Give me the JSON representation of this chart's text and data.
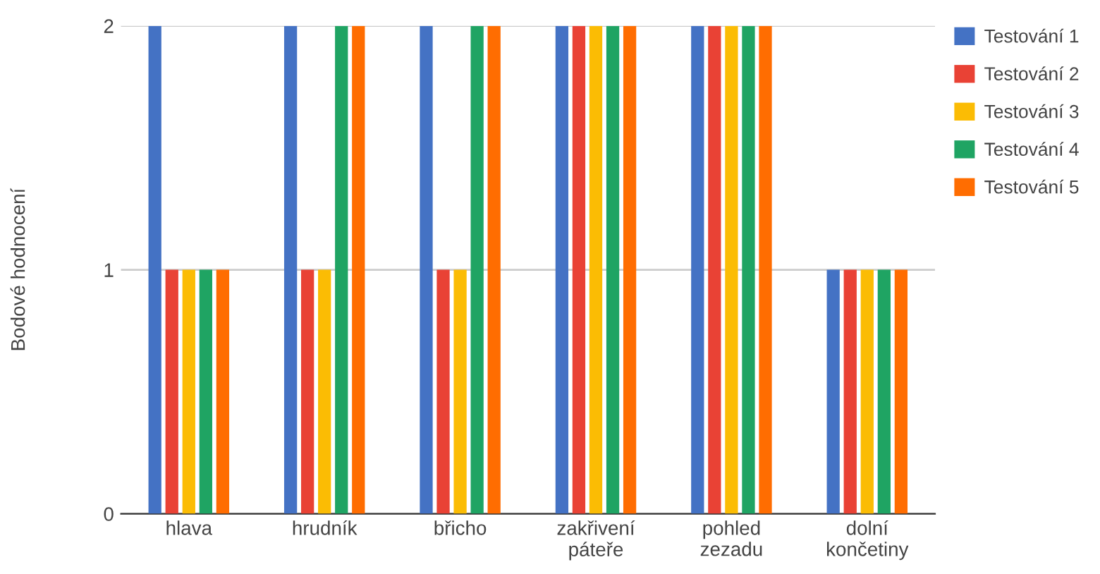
{
  "chart_data": {
    "type": "bar",
    "ylabel": "Bodové hodnocení",
    "categories": [
      "hlava",
      "hrudník",
      "břicho",
      "zakřivení\npáteře",
      "pohled\nzezadu",
      "dolní\nkončetiny"
    ],
    "series": [
      {
        "name": "Testování 1",
        "color": "#4472c4",
        "values": [
          2,
          2,
          2,
          2,
          2,
          1
        ]
      },
      {
        "name": "Testování 2",
        "color": "#e94235",
        "values": [
          1,
          1,
          1,
          2,
          2,
          1
        ]
      },
      {
        "name": "Testování 3",
        "color": "#fbbc04",
        "values": [
          1,
          1,
          1,
          2,
          2,
          1
        ]
      },
      {
        "name": "Testování 4",
        "color": "#1fa463",
        "values": [
          1,
          2,
          2,
          2,
          2,
          1
        ]
      },
      {
        "name": "Testování 5",
        "color": "#ff6d01",
        "values": [
          1,
          2,
          2,
          2,
          2,
          1
        ]
      }
    ],
    "ylim": [
      0,
      2
    ],
    "yticks": [
      0,
      1,
      2
    ],
    "grid": "y",
    "legend": "top right"
  }
}
